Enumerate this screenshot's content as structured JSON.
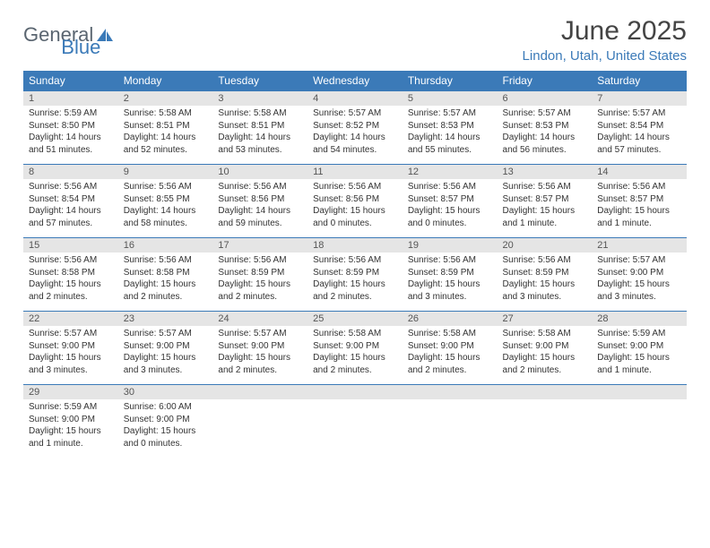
{
  "brand": {
    "general": "General",
    "blue": "Blue"
  },
  "title": "June 2025",
  "location": "Lindon, Utah, United States",
  "colors": {
    "header_bg": "#3b7ab8",
    "header_text": "#ffffff",
    "daynum_bg": "#e5e5e5",
    "border": "#3b7ab8",
    "title_color": "#444444",
    "location_color": "#3b7ab8",
    "logo_gray": "#5a6570",
    "logo_blue": "#3b7ab8",
    "body_text": "#333333",
    "page_bg": "#ffffff"
  },
  "typography": {
    "title_fontsize": 30,
    "location_fontsize": 15,
    "header_fontsize": 12,
    "daynum_fontsize": 11,
    "body_fontsize": 10,
    "logo_fontsize": 22
  },
  "weekdays": [
    "Sunday",
    "Monday",
    "Tuesday",
    "Wednesday",
    "Thursday",
    "Friday",
    "Saturday"
  ],
  "weeks": [
    [
      {
        "day": "1",
        "sunrise": "5:59 AM",
        "sunset": "8:50 PM",
        "daylight": "14 hours and 51 minutes."
      },
      {
        "day": "2",
        "sunrise": "5:58 AM",
        "sunset": "8:51 PM",
        "daylight": "14 hours and 52 minutes."
      },
      {
        "day": "3",
        "sunrise": "5:58 AM",
        "sunset": "8:51 PM",
        "daylight": "14 hours and 53 minutes."
      },
      {
        "day": "4",
        "sunrise": "5:57 AM",
        "sunset": "8:52 PM",
        "daylight": "14 hours and 54 minutes."
      },
      {
        "day": "5",
        "sunrise": "5:57 AM",
        "sunset": "8:53 PM",
        "daylight": "14 hours and 55 minutes."
      },
      {
        "day": "6",
        "sunrise": "5:57 AM",
        "sunset": "8:53 PM",
        "daylight": "14 hours and 56 minutes."
      },
      {
        "day": "7",
        "sunrise": "5:57 AM",
        "sunset": "8:54 PM",
        "daylight": "14 hours and 57 minutes."
      }
    ],
    [
      {
        "day": "8",
        "sunrise": "5:56 AM",
        "sunset": "8:54 PM",
        "daylight": "14 hours and 57 minutes."
      },
      {
        "day": "9",
        "sunrise": "5:56 AM",
        "sunset": "8:55 PM",
        "daylight": "14 hours and 58 minutes."
      },
      {
        "day": "10",
        "sunrise": "5:56 AM",
        "sunset": "8:56 PM",
        "daylight": "14 hours and 59 minutes."
      },
      {
        "day": "11",
        "sunrise": "5:56 AM",
        "sunset": "8:56 PM",
        "daylight": "15 hours and 0 minutes."
      },
      {
        "day": "12",
        "sunrise": "5:56 AM",
        "sunset": "8:57 PM",
        "daylight": "15 hours and 0 minutes."
      },
      {
        "day": "13",
        "sunrise": "5:56 AM",
        "sunset": "8:57 PM",
        "daylight": "15 hours and 1 minute."
      },
      {
        "day": "14",
        "sunrise": "5:56 AM",
        "sunset": "8:57 PM",
        "daylight": "15 hours and 1 minute."
      }
    ],
    [
      {
        "day": "15",
        "sunrise": "5:56 AM",
        "sunset": "8:58 PM",
        "daylight": "15 hours and 2 minutes."
      },
      {
        "day": "16",
        "sunrise": "5:56 AM",
        "sunset": "8:58 PM",
        "daylight": "15 hours and 2 minutes."
      },
      {
        "day": "17",
        "sunrise": "5:56 AM",
        "sunset": "8:59 PM",
        "daylight": "15 hours and 2 minutes."
      },
      {
        "day": "18",
        "sunrise": "5:56 AM",
        "sunset": "8:59 PM",
        "daylight": "15 hours and 2 minutes."
      },
      {
        "day": "19",
        "sunrise": "5:56 AM",
        "sunset": "8:59 PM",
        "daylight": "15 hours and 3 minutes."
      },
      {
        "day": "20",
        "sunrise": "5:56 AM",
        "sunset": "8:59 PM",
        "daylight": "15 hours and 3 minutes."
      },
      {
        "day": "21",
        "sunrise": "5:57 AM",
        "sunset": "9:00 PM",
        "daylight": "15 hours and 3 minutes."
      }
    ],
    [
      {
        "day": "22",
        "sunrise": "5:57 AM",
        "sunset": "9:00 PM",
        "daylight": "15 hours and 3 minutes."
      },
      {
        "day": "23",
        "sunrise": "5:57 AM",
        "sunset": "9:00 PM",
        "daylight": "15 hours and 3 minutes."
      },
      {
        "day": "24",
        "sunrise": "5:57 AM",
        "sunset": "9:00 PM",
        "daylight": "15 hours and 2 minutes."
      },
      {
        "day": "25",
        "sunrise": "5:58 AM",
        "sunset": "9:00 PM",
        "daylight": "15 hours and 2 minutes."
      },
      {
        "day": "26",
        "sunrise": "5:58 AM",
        "sunset": "9:00 PM",
        "daylight": "15 hours and 2 minutes."
      },
      {
        "day": "27",
        "sunrise": "5:58 AM",
        "sunset": "9:00 PM",
        "daylight": "15 hours and 2 minutes."
      },
      {
        "day": "28",
        "sunrise": "5:59 AM",
        "sunset": "9:00 PM",
        "daylight": "15 hours and 1 minute."
      }
    ],
    [
      {
        "day": "29",
        "sunrise": "5:59 AM",
        "sunset": "9:00 PM",
        "daylight": "15 hours and 1 minute."
      },
      {
        "day": "30",
        "sunrise": "6:00 AM",
        "sunset": "9:00 PM",
        "daylight": "15 hours and 0 minutes."
      },
      null,
      null,
      null,
      null,
      null
    ]
  ],
  "labels": {
    "sunrise": "Sunrise: ",
    "sunset": "Sunset: ",
    "daylight": "Daylight: "
  }
}
